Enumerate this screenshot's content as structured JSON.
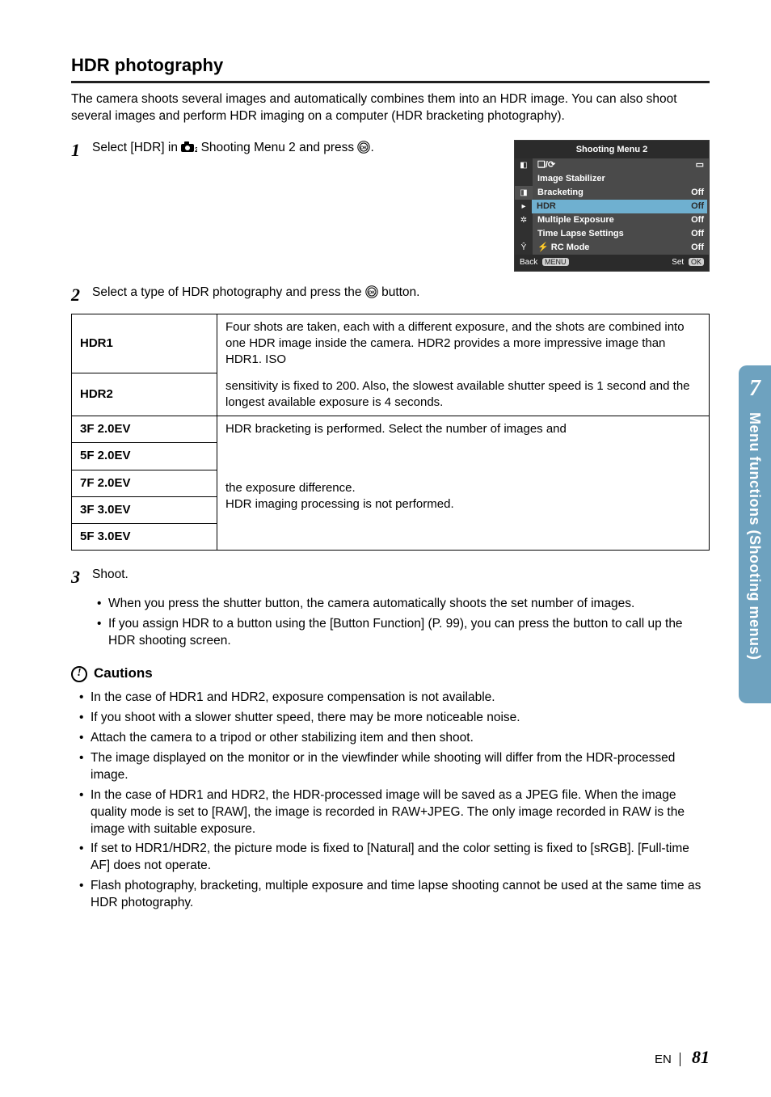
{
  "section": {
    "title": "HDR photography",
    "intro": "The camera shoots several images and automatically combines them into an HDR image. You can also shoot several images and perform HDR imaging on a computer (HDR bracketing photography)."
  },
  "steps": {
    "step1": {
      "num": "1",
      "text_before": "Select [HDR] in ",
      "text_mid": " Shooting Menu 2 and press ",
      "text_after": "."
    },
    "step2": {
      "num": "2",
      "text_before": "Select a type of HDR photography and press the ",
      "text_after": " button."
    },
    "step3": {
      "num": "3",
      "text": "Shoot.",
      "bullets": [
        "When you press the shutter button, the camera automatically shoots the set number of images.",
        "If you assign HDR to a button using the [Button Function] (P. 99), you can press the button to call up the HDR shooting screen."
      ]
    }
  },
  "menu_shot": {
    "header": "Shooting Menu 2",
    "rows": [
      {
        "icon": "cam1",
        "label": "❏/⟳",
        "val": "▭"
      },
      {
        "icon": "",
        "label": "Image Stabilizer",
        "val": ""
      },
      {
        "icon": "cam2",
        "label": "Bracketing",
        "val": "Off"
      },
      {
        "icon": "play",
        "label": "HDR",
        "val": "Off",
        "highlight": true
      },
      {
        "icon": "gear",
        "label": "Multiple Exposure",
        "val": "Off"
      },
      {
        "icon": "",
        "label": "Time Lapse Settings",
        "val": "Off"
      },
      {
        "icon": "setup",
        "label": "⚡ RC Mode",
        "val": "Off"
      }
    ],
    "footer_back": "Back",
    "footer_back_pill": "MENU",
    "footer_set": "Set",
    "footer_set_pill": "OK"
  },
  "modes_table": {
    "desc_group1_a": "Four shots are taken, each with a different exposure, and the shots are combined into one HDR image inside the camera. HDR2 provides a more impressive image than HDR1. ISO",
    "desc_group1_b": "sensitivity is fixed to 200. Also, the slowest available shutter speed is 1 second and the longest available exposure is 4 seconds.",
    "desc_group2_a": "HDR bracketing is performed. Select the number of images and",
    "desc_group2_b": "the exposure difference.\nHDR imaging processing is not performed.",
    "rows": [
      {
        "key": "HDR1"
      },
      {
        "key": "HDR2"
      },
      {
        "key": "3F 2.0EV"
      },
      {
        "key": "5F 2.0EV"
      },
      {
        "key": "7F 2.0EV"
      },
      {
        "key": "3F 3.0EV"
      },
      {
        "key": "5F 3.0EV"
      }
    ]
  },
  "cautions": {
    "heading": "Cautions",
    "items": [
      "In the case of HDR1 and HDR2, exposure compensation is not available.",
      "If you shoot with a slower shutter speed, there may be more noticeable noise.",
      "Attach the camera to a tripod or other stabilizing item and then shoot.",
      "The image displayed on the monitor or in the viewfinder while shooting will differ from the HDR-processed image.",
      "In the case of HDR1 and HDR2, the HDR-processed image will be saved as a JPEG file. When the image quality mode is set to [RAW], the image is recorded in RAW+JPEG. The only image recorded in RAW is the image with suitable exposure.",
      "If set to HDR1/HDR2, the picture mode is fixed to [Natural] and the color setting is fixed to [sRGB]. [Full-time AF] does not operate.",
      "Flash photography, bracketing, multiple exposure and time lapse shooting cannot be used at the same time as HDR photography."
    ]
  },
  "side_tab": {
    "num": "7",
    "text": "Menu functions (Shooting menus)"
  },
  "footer": {
    "lang": "EN",
    "page": "81"
  },
  "colors": {
    "tab_bg": "#6ea2bf",
    "menu_highlight": "#6fb0d0",
    "menu_bg": "#4a4a4a",
    "menu_dark": "#2b2b2b"
  },
  "icons": {
    "shooting_menu2_glyph": "camera-2-icon",
    "ok_button_glyph": "ok-circle-icon"
  }
}
